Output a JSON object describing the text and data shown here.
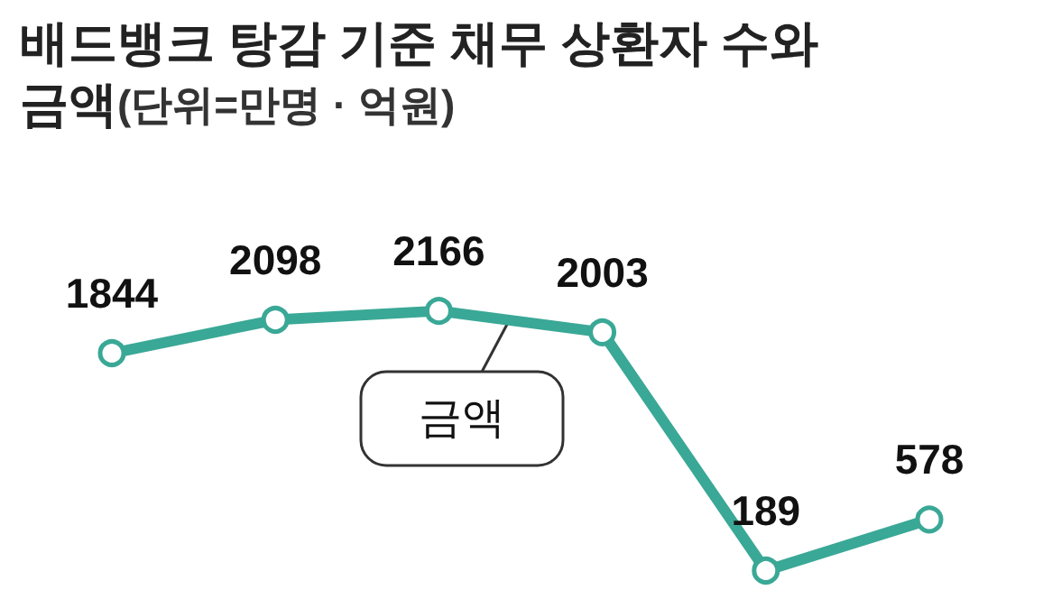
{
  "chart_data": {
    "type": "line",
    "title": "배드뱅크 탕감 기준 채무 상환자 수와 금액",
    "subtitle": "(단위=만명 · 억원)",
    "categories": [
      null,
      null,
      null,
      null,
      null,
      null
    ],
    "series": [
      {
        "color": "#3aa896",
        "values": [
          1844,
          2098,
          2166,
          2003,
          189,
          578
        ]
      }
    ],
    "data_labels": true,
    "marker": "circle",
    "line_style": "solid",
    "annotations": [
      "금액"
    ]
  }
}
